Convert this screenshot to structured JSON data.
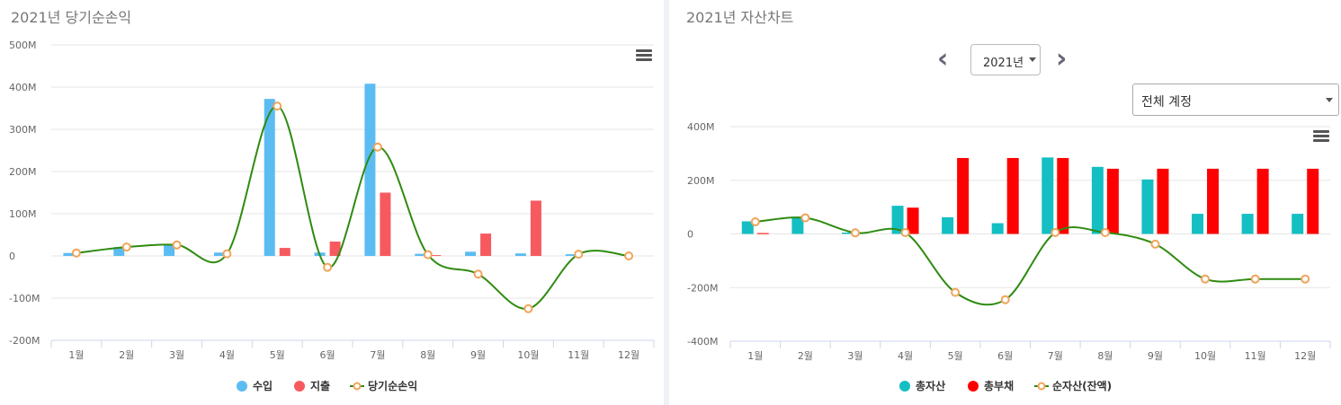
{
  "left": {
    "title": "2021년 당기순손익",
    "chart_data": {
      "type": "bar",
      "categories": [
        "1월",
        "2월",
        "3월",
        "4월",
        "5월",
        "6월",
        "7월",
        "8월",
        "9월",
        "10월",
        "11월",
        "12월"
      ],
      "series": [
        {
          "name": "수입",
          "kind": "bar",
          "color": "#5bbcf2",
          "values": [
            7,
            21,
            26,
            8,
            372,
            8,
            408,
            5,
            10,
            6,
            4,
            0
          ]
        },
        {
          "name": "지출",
          "kind": "bar",
          "color": "#f65a5f",
          "values": [
            0,
            0,
            0,
            0,
            19,
            34,
            150,
            2,
            53,
            131,
            0,
            0
          ]
        },
        {
          "name": "당기순손익",
          "kind": "line",
          "color": "#2e8b10",
          "marker": "#f0a45a",
          "values": [
            7,
            21,
            26,
            5,
            355,
            -27,
            258,
            3,
            -43,
            -125,
            4,
            0
          ]
        }
      ],
      "ylim": [
        -200,
        500
      ],
      "yticks": [
        -200,
        -100,
        0,
        100,
        200,
        300,
        400,
        500
      ],
      "ytick_labels": [
        "-200M",
        "-100M",
        "0",
        "100M",
        "200M",
        "300M",
        "400M",
        "500M"
      ],
      "grid": true,
      "legend": "bottom-center"
    }
  },
  "right": {
    "title": "2021년 자산차트",
    "year_select": {
      "value": "2021년"
    },
    "account_select": {
      "value": "전체 계정"
    },
    "chart_data": {
      "type": "bar",
      "categories": [
        "1월",
        "2월",
        "3월",
        "4월",
        "5월",
        "6월",
        "7월",
        "8월",
        "9월",
        "10월",
        "11월",
        "12월"
      ],
      "series": [
        {
          "name": "총자산",
          "kind": "bar",
          "color": "#13bfc3",
          "values": [
            47,
            60,
            5,
            105,
            62,
            40,
            285,
            250,
            203,
            75,
            75,
            75
          ]
        },
        {
          "name": "총부채",
          "kind": "bar",
          "color": "#ff0000",
          "values": [
            3,
            0,
            0,
            98,
            283,
            283,
            283,
            243,
            243,
            243,
            243,
            243
          ]
        },
        {
          "name": "순자산(잔액)",
          "kind": "line",
          "color": "#2e8b10",
          "marker": "#f0a45a",
          "values": [
            45,
            60,
            4,
            5,
            -218,
            -245,
            5,
            5,
            -38,
            -168,
            -168,
            -168
          ]
        }
      ],
      "ylim": [
        -400,
        400
      ],
      "yticks": [
        -400,
        -200,
        0,
        200,
        400
      ],
      "ytick_labels": [
        "-400M",
        "-200M",
        "0",
        "200M",
        "400M"
      ],
      "grid": true,
      "legend": "bottom-center"
    }
  },
  "icons": {
    "menu": "hamburger-menu-icon",
    "prev": "chevron-left-icon",
    "next": "chevron-right-icon",
    "dropdown": "caret-down-icon"
  }
}
